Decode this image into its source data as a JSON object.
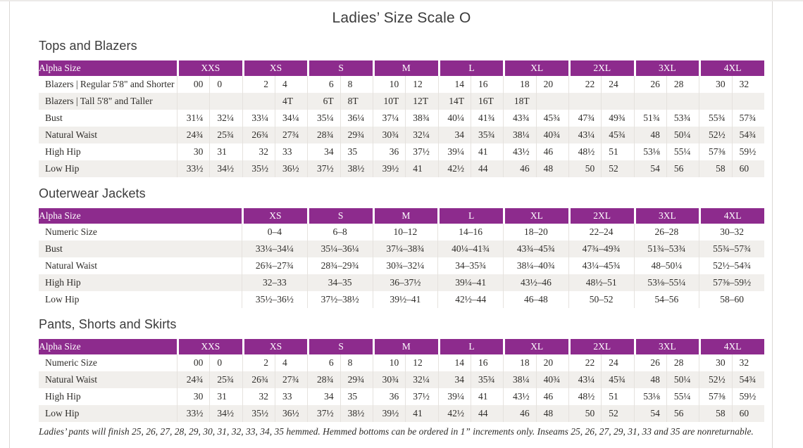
{
  "page": {
    "title": "Ladies’ Size Scale O"
  },
  "labels": {
    "alpha_size": "Alpha Size"
  },
  "sections": [
    {
      "id": "tops-and-blazers",
      "heading": "Tops and Blazers",
      "type": "dual",
      "columns": [
        "XXS",
        "XS",
        "S",
        "M",
        "L",
        "XL",
        "2XL",
        "3XL",
        "4XL"
      ],
      "rows": [
        {
          "label": "Blazers | Regular 5'8\" and Shorter",
          "values": [
            "00",
            "0",
            "2",
            "4",
            "6",
            "8",
            "10",
            "12",
            "14",
            "16",
            "18",
            "20",
            "22",
            "24",
            "26",
            "28",
            "30",
            "32"
          ]
        },
        {
          "label": "Blazers | Tall 5'8\" and Taller",
          "values": [
            "",
            "",
            "",
            "4T",
            "6T",
            "8T",
            "10T",
            "12T",
            "14T",
            "16T",
            "18T",
            "",
            "",
            "",
            "",
            "",
            "",
            ""
          ]
        },
        {
          "label": "Bust",
          "values": [
            "31¼",
            "32¼",
            "33¼",
            "34¼",
            "35¼",
            "36¼",
            "37¼",
            "38¾",
            "40¼",
            "41¾",
            "43¾",
            "45¾",
            "47¾",
            "49¾",
            "51¾",
            "53¾",
            "55¾",
            "57¾"
          ]
        },
        {
          "label": "Natural Waist",
          "values": [
            "24¾",
            "25¾",
            "26¾",
            "27¾",
            "28¾",
            "29¾",
            "30¾",
            "32¼",
            "34",
            "35¾",
            "38¼",
            "40¾",
            "43¼",
            "45¾",
            "48",
            "50¼",
            "52½",
            "54¾"
          ]
        },
        {
          "label": "High Hip",
          "values": [
            "30",
            "31",
            "32",
            "33",
            "34",
            "35",
            "36",
            "37½",
            "39¼",
            "41",
            "43½",
            "46",
            "48½",
            "51",
            "53⅛",
            "55¼",
            "57⅜",
            "59½"
          ]
        },
        {
          "label": "Low Hip",
          "values": [
            "33½",
            "34½",
            "35½",
            "36½",
            "37½",
            "38½",
            "39½",
            "41",
            "42½",
            "44",
            "46",
            "48",
            "50",
            "52",
            "54",
            "56",
            "58",
            "60"
          ]
        }
      ]
    },
    {
      "id": "outerwear-jackets",
      "heading": "Outerwear Jackets",
      "type": "single",
      "columns": [
        "XS",
        "S",
        "M",
        "L",
        "XL",
        "2XL",
        "3XL",
        "4XL"
      ],
      "rows": [
        {
          "label": "Numeric Size",
          "values": [
            "0–4",
            "6–8",
            "10–12",
            "14–16",
            "18–20",
            "22–24",
            "26–28",
            "30–32"
          ]
        },
        {
          "label": "Bust",
          "values": [
            "33¼–34¼",
            "35¼–36¼",
            "37¼–38¾",
            "40¼–41¾",
            "43¾–45¾",
            "47¾–49¾",
            "51¾–53¾",
            "55¾–57¾"
          ]
        },
        {
          "label": "Natural Waist",
          "values": [
            "26¾–27¾",
            "28¾–29¾",
            "30¾–32¼",
            "34–35¾",
            "38¼–40¾",
            "43¼–45¾",
            "48–50¼",
            "52½–54¾"
          ]
        },
        {
          "label": "High Hip",
          "values": [
            "32–33",
            "34–35",
            "36–37½",
            "39¼–41",
            "43½–46",
            "48½–51",
            "53⅛–55¼",
            "57⅜–59½"
          ]
        },
        {
          "label": "Low Hip",
          "values": [
            "35½–36½",
            "37½–38½",
            "39½–41",
            "42½–44",
            "46–48",
            "50–52",
            "54–56",
            "58–60"
          ]
        }
      ]
    },
    {
      "id": "pants-shorts-and-skirts",
      "heading": "Pants, Shorts and Skirts",
      "type": "dual",
      "columns": [
        "XXS",
        "XS",
        "S",
        "M",
        "L",
        "XL",
        "2XL",
        "3XL",
        "4XL"
      ],
      "rows": [
        {
          "label": "Numeric Size",
          "values": [
            "00",
            "0",
            "2",
            "4",
            "6",
            "8",
            "10",
            "12",
            "14",
            "16",
            "18",
            "20",
            "22",
            "24",
            "26",
            "28",
            "30",
            "32"
          ]
        },
        {
          "label": "Natural Waist",
          "values": [
            "24¾",
            "25¾",
            "26¾",
            "27¾",
            "28¾",
            "29¾",
            "30¾",
            "32¼",
            "34",
            "35¾",
            "38¼",
            "40¾",
            "43¼",
            "45¾",
            "48",
            "50¼",
            "52½",
            "54¾"
          ]
        },
        {
          "label": "High Hip",
          "values": [
            "30",
            "31",
            "32",
            "33",
            "34",
            "35",
            "36",
            "37½",
            "39¼",
            "41",
            "43½",
            "46",
            "48½",
            "51",
            "53⅛",
            "55¼",
            "57⅜",
            "59½"
          ]
        },
        {
          "label": "Low Hip",
          "values": [
            "33½",
            "34½",
            "35½",
            "36½",
            "37½",
            "38½",
            "39½",
            "41",
            "42½",
            "44",
            "46",
            "48",
            "50",
            "52",
            "54",
            "56",
            "58",
            "60"
          ]
        }
      ]
    }
  ],
  "footnote": "Ladies’ pants will finish 25, 26, 27, 28, 29, 30, 31, 32, 33, 34, 35 hemmed. Hemmed bottoms can be ordered in 1” increments only. Inseams 25, 26, 27, 29, 31, 33 and 35 are nonreturnable.",
  "colors": {
    "header_bg": "#8D2B8D",
    "header_text": "#FFFFFF",
    "row_stripe": "#F1EFEC",
    "body_text": "#2E2C29",
    "page_border": "#DBD8D5"
  }
}
